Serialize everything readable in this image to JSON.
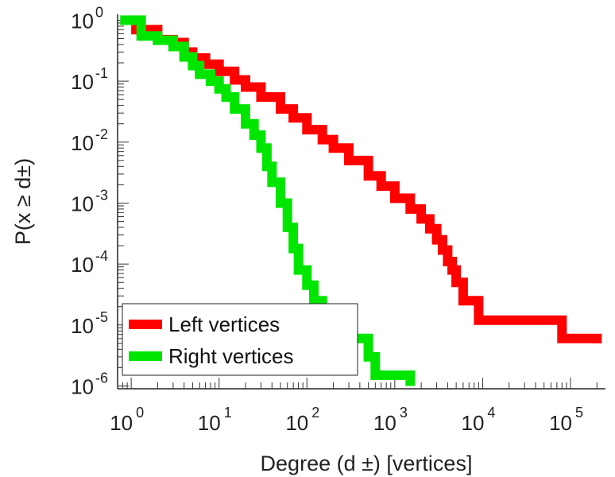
{
  "chart_data": {
    "type": "line",
    "x_scale": "log",
    "y_scale": "log",
    "xlabel": "Degree (d ±) [vertices]",
    "ylabel": "P(x ≥ d±)",
    "xlim": [
      0.7,
      250000
    ],
    "ylim": [
      9e-07,
      1.25
    ],
    "x_ticks": [
      {
        "value": 1,
        "label": "10",
        "exp": "0"
      },
      {
        "value": 10,
        "label": "10",
        "exp": "1"
      },
      {
        "value": 100,
        "label": "10",
        "exp": "2"
      },
      {
        "value": 1000,
        "label": "10",
        "exp": "3"
      },
      {
        "value": 10000,
        "label": "10",
        "exp": "4"
      },
      {
        "value": 100000,
        "label": "10",
        "exp": "5"
      }
    ],
    "y_ticks": [
      {
        "value": 1,
        "label": "10",
        "exp": "0"
      },
      {
        "value": 0.1,
        "label": "10",
        "exp": "-1"
      },
      {
        "value": 0.01,
        "label": "10",
        "exp": "-2"
      },
      {
        "value": 0.001,
        "label": "10",
        "exp": "-3"
      },
      {
        "value": 0.0001,
        "label": "10",
        "exp": "-4"
      },
      {
        "value": 1e-05,
        "label": "10",
        "exp": "-5"
      },
      {
        "value": 1e-06,
        "label": "10",
        "exp": "-6"
      }
    ],
    "grid": false,
    "legend": "bottom-left",
    "series": [
      {
        "name": "Left vertices",
        "color": "#ff0000",
        "step": true,
        "x": [
          1,
          2,
          3,
          4,
          5,
          7,
          10,
          15,
          20,
          30,
          50,
          70,
          100,
          150,
          200,
          300,
          500,
          700,
          1000,
          1500,
          2000,
          2500,
          3000,
          3500,
          4000,
          4500,
          5000,
          6000,
          9000,
          80000,
          200000
        ],
        "y": [
          0.7,
          0.48,
          0.43,
          0.3,
          0.24,
          0.19,
          0.145,
          0.105,
          0.08,
          0.055,
          0.035,
          0.025,
          0.016,
          0.011,
          0.008,
          0.005,
          0.0028,
          0.0019,
          0.0012,
          0.0008,
          0.00055,
          0.00038,
          0.00025,
          0.00017,
          0.00011,
          8e-05,
          5e-05,
          2.5e-05,
          1.2e-05,
          6e-06,
          5e-06
        ]
      },
      {
        "name": "Right vertices",
        "color": "#00e600",
        "step": true,
        "x": [
          0.75,
          1.3,
          2,
          3,
          4,
          5,
          6,
          8,
          10,
          12,
          15,
          20,
          25,
          30,
          35,
          40,
          50,
          60,
          70,
          80,
          100,
          120,
          150,
          200,
          300,
          500,
          600,
          1500
        ],
        "y": [
          1,
          0.55,
          0.47,
          0.37,
          0.25,
          0.18,
          0.13,
          0.1,
          0.075,
          0.055,
          0.035,
          0.02,
          0.013,
          0.008,
          0.004,
          0.0022,
          0.001,
          0.0004,
          0.00018,
          8e-05,
          4.5e-05,
          2.5e-05,
          1.8e-05,
          1.2e-05,
          6e-06,
          3e-06,
          1.5e-06,
          1e-06
        ]
      }
    ]
  }
}
